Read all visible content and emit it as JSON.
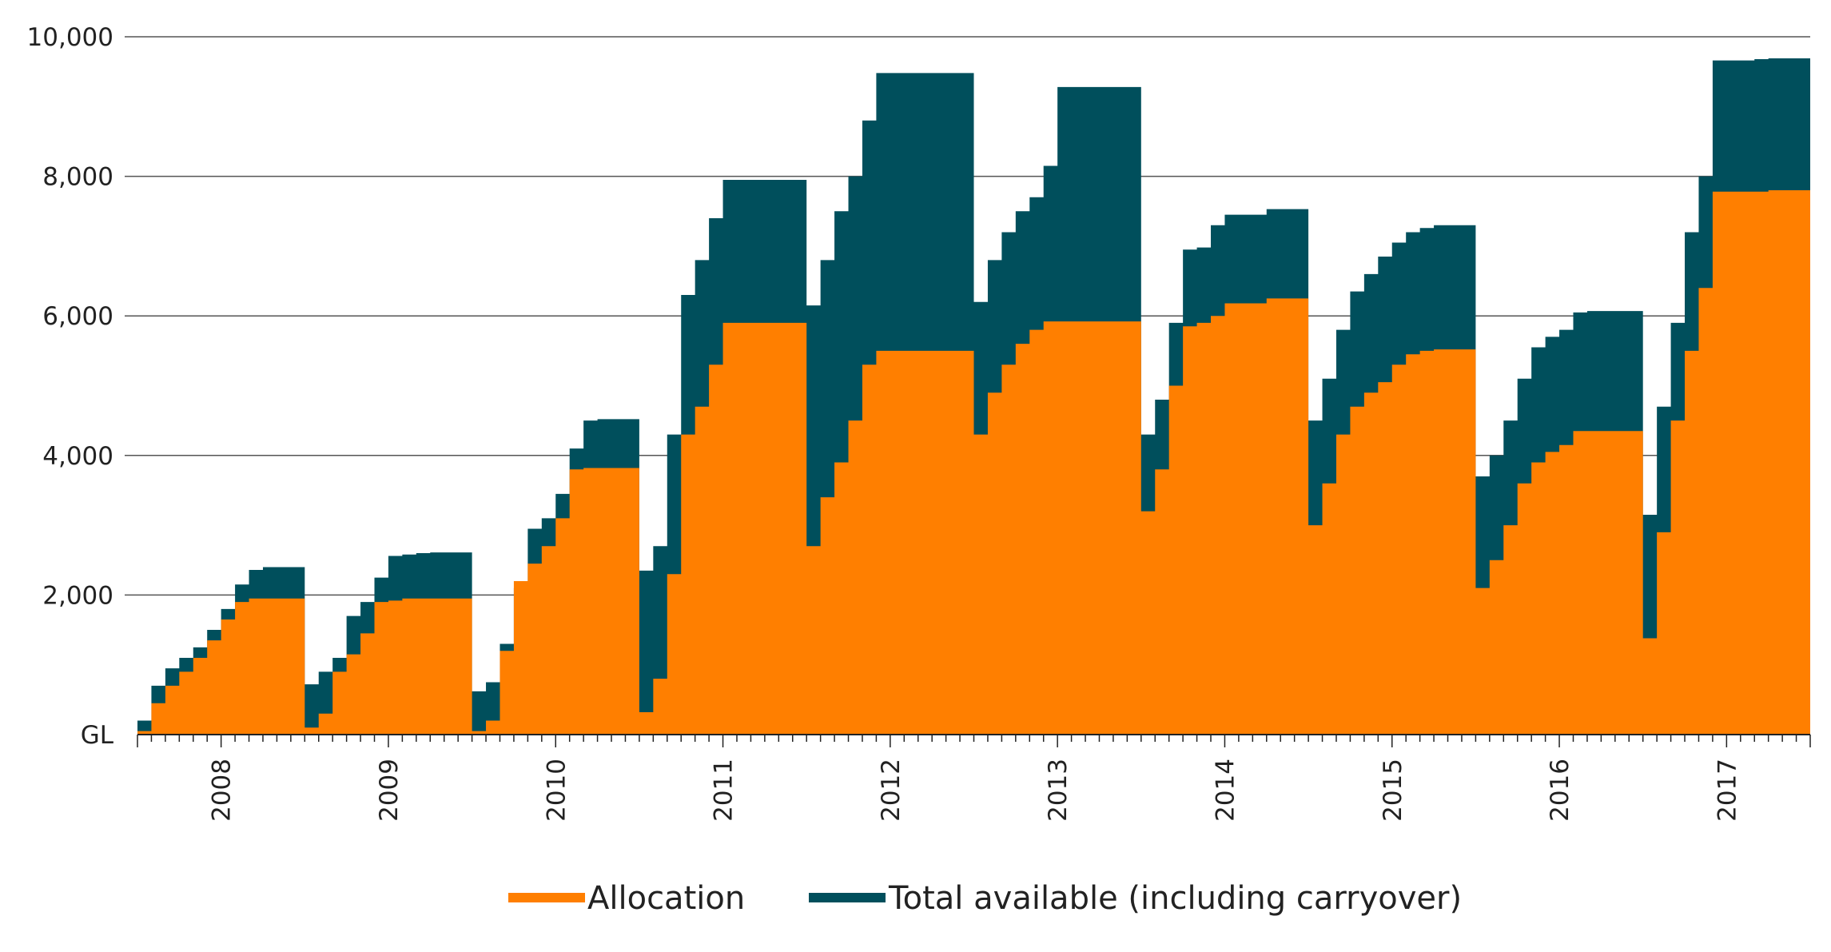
{
  "chart_data": {
    "type": "area",
    "title": "",
    "xlabel": "",
    "ylabel": "",
    "y_unit_label": "GL",
    "ylim": [
      0,
      10000
    ],
    "y_ticks": [
      {
        "value": 0,
        "label": "GL"
      },
      {
        "value": 2000,
        "label": "2,000"
      },
      {
        "value": 4000,
        "label": "4,000"
      },
      {
        "value": 6000,
        "label": "6,000"
      },
      {
        "value": 8000,
        "label": "8,000"
      },
      {
        "value": 10000,
        "label": "10,000"
      }
    ],
    "x_ticks": [
      "2008",
      "2009",
      "2010",
      "2011",
      "2012",
      "2013",
      "2014",
      "2015",
      "2016",
      "2017"
    ],
    "x_range": [
      "2007-07",
      "2017-06"
    ],
    "grid": "horizontal",
    "legend_position": "bottom",
    "colors": {
      "allocation": "#ff7f00",
      "total": "#004f5c",
      "grid": "#555555",
      "axis": "#222222"
    },
    "x": [
      "2007-07",
      "2007-08",
      "2007-09",
      "2007-10",
      "2007-11",
      "2007-12",
      "2008-01",
      "2008-02",
      "2008-03",
      "2008-04",
      "2008-05",
      "2008-06",
      "2008-07",
      "2008-08",
      "2008-09",
      "2008-10",
      "2008-11",
      "2008-12",
      "2009-01",
      "2009-02",
      "2009-03",
      "2009-04",
      "2009-05",
      "2009-06",
      "2009-07",
      "2009-08",
      "2009-09",
      "2009-10",
      "2009-11",
      "2009-12",
      "2010-01",
      "2010-02",
      "2010-03",
      "2010-04",
      "2010-05",
      "2010-06",
      "2010-07",
      "2010-08",
      "2010-09",
      "2010-10",
      "2010-11",
      "2010-12",
      "2011-01",
      "2011-02",
      "2011-03",
      "2011-04",
      "2011-05",
      "2011-06",
      "2011-07",
      "2011-08",
      "2011-09",
      "2011-10",
      "2011-11",
      "2011-12",
      "2012-01",
      "2012-02",
      "2012-03",
      "2012-04",
      "2012-05",
      "2012-06",
      "2012-07",
      "2012-08",
      "2012-09",
      "2012-10",
      "2012-11",
      "2012-12",
      "2013-01",
      "2013-02",
      "2013-03",
      "2013-04",
      "2013-05",
      "2013-06",
      "2013-07",
      "2013-08",
      "2013-09",
      "2013-10",
      "2013-11",
      "2013-12",
      "2014-01",
      "2014-02",
      "2014-03",
      "2014-04",
      "2014-05",
      "2014-06",
      "2014-07",
      "2014-08",
      "2014-09",
      "2014-10",
      "2014-11",
      "2014-12",
      "2015-01",
      "2015-02",
      "2015-03",
      "2015-04",
      "2015-05",
      "2015-06",
      "2015-07",
      "2015-08",
      "2015-09",
      "2015-10",
      "2015-11",
      "2015-12",
      "2016-01",
      "2016-02",
      "2016-03",
      "2016-04",
      "2016-05",
      "2016-06",
      "2016-07",
      "2016-08",
      "2016-09",
      "2016-10",
      "2016-11",
      "2016-12",
      "2017-01",
      "2017-02",
      "2017-03",
      "2017-04",
      "2017-05",
      "2017-06"
    ],
    "series": [
      {
        "name": "Allocation",
        "key": "allocation",
        "values": [
          50,
          450,
          700,
          900,
          1100,
          1350,
          1650,
          1900,
          1950,
          1950,
          1950,
          1950,
          100,
          300,
          900,
          1150,
          1450,
          1900,
          1920,
          1950,
          1950,
          1950,
          1950,
          1950,
          50,
          200,
          1200,
          2200,
          2450,
          2700,
          3100,
          3800,
          3820,
          3820,
          3820,
          3820,
          320,
          800,
          2300,
          4300,
          4700,
          5300,
          5900,
          5900,
          5900,
          5900,
          5900,
          5900,
          2700,
          3400,
          3900,
          4500,
          5300,
          5500,
          5500,
          5500,
          5500,
          5500,
          5500,
          5500,
          4300,
          4900,
          5300,
          5600,
          5800,
          5920,
          5920,
          5920,
          5920,
          5920,
          5920,
          5920,
          3200,
          3800,
          5000,
          5850,
          5900,
          6000,
          6180,
          6180,
          6180,
          6250,
          6250,
          6250,
          3000,
          3600,
          4300,
          4700,
          4900,
          5050,
          5300,
          5450,
          5500,
          5520,
          5520,
          5520,
          2100,
          2500,
          3000,
          3600,
          3900,
          4050,
          4150,
          4350,
          4350,
          4350,
          4350,
          4350,
          1380,
          2900,
          4500,
          5500,
          6400,
          7780,
          7780,
          7780,
          7780,
          7800,
          7800,
          7800
        ]
      },
      {
        "name": "Total available (including carryover)",
        "key": "total",
        "values": [
          200,
          700,
          950,
          1100,
          1250,
          1500,
          1800,
          2150,
          2360,
          2400,
          2400,
          2400,
          720,
          900,
          1100,
          1700,
          1900,
          2250,
          2560,
          2580,
          2600,
          2610,
          2610,
          2610,
          620,
          750,
          1300,
          2100,
          2950,
          3100,
          3450,
          4100,
          4500,
          4520,
          4520,
          4520,
          2350,
          2700,
          4300,
          6300,
          6800,
          7400,
          7950,
          7950,
          7950,
          7950,
          7950,
          7950,
          6150,
          6800,
          7500,
          8000,
          8800,
          9480,
          9480,
          9480,
          9480,
          9480,
          9480,
          9480,
          6200,
          6800,
          7200,
          7500,
          7700,
          8150,
          9280,
          9280,
          9280,
          9280,
          9280,
          9280,
          4300,
          4800,
          5900,
          6950,
          6980,
          7300,
          7450,
          7450,
          7450,
          7530,
          7530,
          7530,
          4500,
          5100,
          5800,
          6350,
          6600,
          6850,
          7050,
          7200,
          7260,
          7300,
          7300,
          7300,
          3700,
          4000,
          4500,
          5100,
          5550,
          5700,
          5800,
          6050,
          6070,
          6070,
          6070,
          6070,
          3150,
          4700,
          5900,
          7200,
          8000,
          9660,
          9660,
          9660,
          9680,
          9690,
          9690,
          9690
        ]
      }
    ]
  },
  "legend": {
    "items": [
      {
        "label": "Allocation",
        "color": "#ff7f00"
      },
      {
        "label": "Total available (including carryover)",
        "color": "#004f5c"
      }
    ]
  }
}
